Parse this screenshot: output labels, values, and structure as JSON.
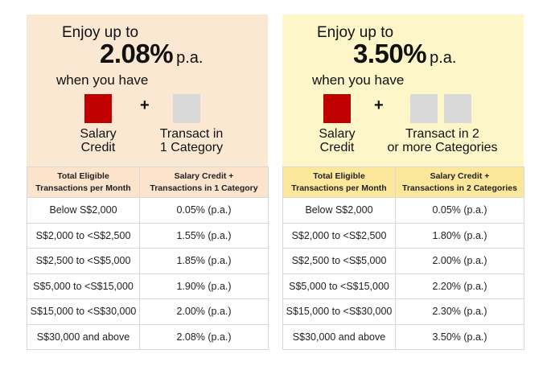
{
  "panels": [
    {
      "enjoy": "Enjoy up to",
      "rate": "2.08%",
      "pa": "p.a.",
      "when": "when you have",
      "plus": "+",
      "left_caption": [
        "Salary",
        "Credit"
      ],
      "right_caption": [
        "Transact in",
        "1 Category"
      ],
      "header_col1": [
        "Total Eligible",
        "Transactions per Month"
      ],
      "header_col2": [
        "Salary Credit +",
        "Transactions in 1 Category"
      ],
      "rows": [
        [
          "Below S$2,000",
          "0.05% (p.a.)"
        ],
        [
          "S$2,000 to <S$2,500",
          "1.55% (p.a.)"
        ],
        [
          "S$2,500 to <S$5,000",
          "1.85% (p.a.)"
        ],
        [
          "S$5,000 to <S$15,000",
          "1.90% (p.a.)"
        ],
        [
          "S$15,000 to <S$30,000",
          "2.00% (p.a.)"
        ],
        [
          "S$30,000 and above",
          "2.08% (p.a.)"
        ]
      ],
      "accent_color": "#fbe8d3"
    },
    {
      "enjoy": "Enjoy up to",
      "rate": "3.50%",
      "pa": "p.a.",
      "when": "when you have",
      "plus": "+",
      "left_caption": [
        "Salary",
        "Credit"
      ],
      "right_caption": [
        "Transact in 2",
        "or more Categories"
      ],
      "header_col1": [
        "Total Eligible",
        "Transactions per Month"
      ],
      "header_col2": [
        "Salary Credit +",
        "Transactions in 2 Categories"
      ],
      "rows": [
        [
          "Below S$2,000",
          "0.05% (p.a.)"
        ],
        [
          "S$2,000 to <S$2,500",
          "1.80% (p.a.)"
        ],
        [
          "S$2,500 to <S$5,000",
          "2.00% (p.a.)"
        ],
        [
          "S$5,000 to <S$15,000",
          "2.20% (p.a.)"
        ],
        [
          "S$15,000 to <S$30,000",
          "2.30% (p.a.)"
        ],
        [
          "S$30,000 and above",
          "3.50% (p.a.)"
        ]
      ],
      "accent_color": "#fcf6c8"
    }
  ],
  "colors": {
    "salary_square": "#c00000",
    "category_square": "#d9d9d9"
  },
  "icons": {
    "salary": "red-square-icon",
    "category": "grey-square-icon"
  }
}
